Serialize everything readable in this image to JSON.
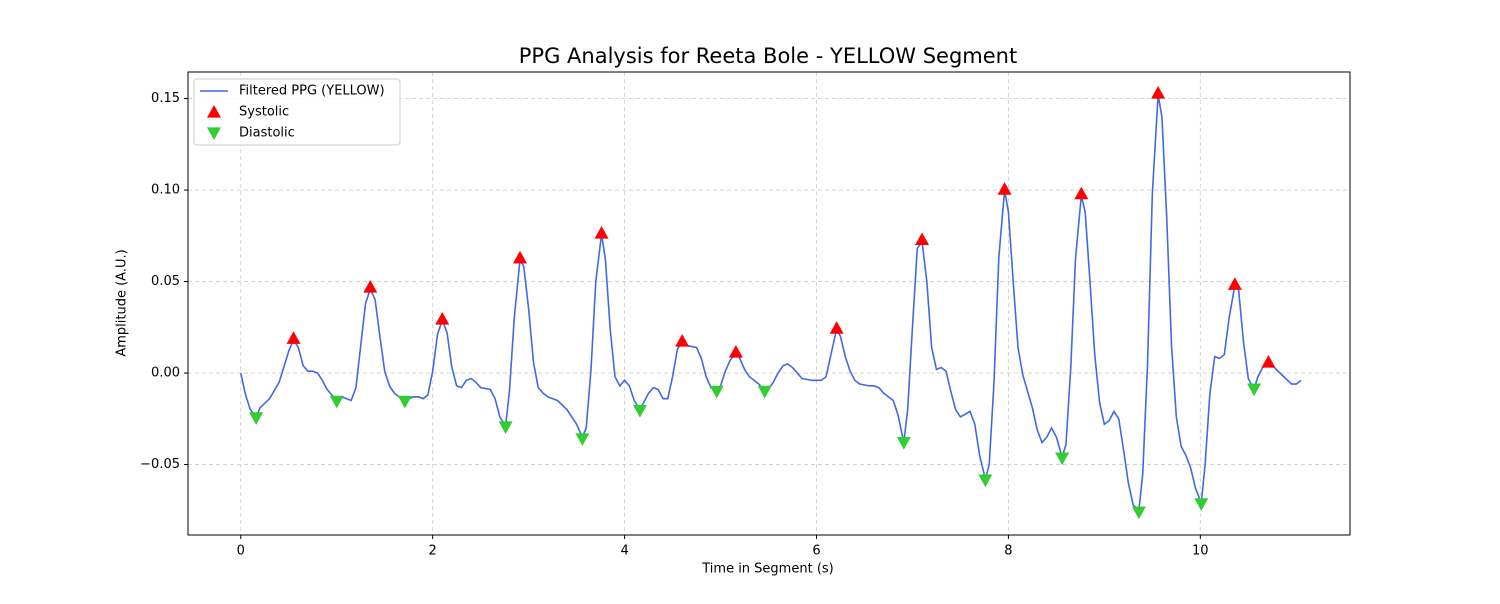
{
  "chart_data": {
    "type": "line",
    "title": "PPG Analysis for Reeta Bole - YELLOW Segment",
    "xlabel": "Time in Segment (s)",
    "ylabel": "Amplitude (A.U.)",
    "xlim": [
      -0.55,
      11.56
    ],
    "ylim": [
      -0.0885,
      0.1645
    ],
    "xticks": [
      0,
      2,
      4,
      6,
      8,
      10
    ],
    "yticks": [
      {
        "value": -0.05,
        "label": "−0.05"
      },
      {
        "value": 0,
        "label": "0.00"
      },
      {
        "value": 0.05,
        "label": "0.05"
      },
      {
        "value": 0.1,
        "label": "0.10"
      },
      {
        "value": 0.15,
        "label": "0.15"
      }
    ],
    "grid": true,
    "legend": "upper left",
    "series": [
      {
        "name": "Filtered PPG (YELLOW)",
        "color": "#4169e1",
        "style": "line",
        "x": [
          0,
          0.05,
          0.1,
          0.16,
          0.2,
          0.3,
          0.4,
          0.5,
          0.55,
          0.6,
          0.65,
          0.7,
          0.75,
          0.8,
          0.85,
          0.9,
          1.0,
          1.05,
          1.1,
          1.15,
          1.2,
          1.25,
          1.3,
          1.35,
          1.4,
          1.45,
          1.5,
          1.55,
          1.6,
          1.7,
          1.8,
          1.85,
          1.9,
          1.95,
          2.0,
          2.05,
          2.1,
          2.15,
          2.2,
          2.25,
          2.3,
          2.35,
          2.4,
          2.45,
          2.5,
          2.6,
          2.65,
          2.7,
          2.76,
          2.8,
          2.85,
          2.91,
          2.95,
          3.0,
          3.05,
          3.1,
          3.15,
          3.2,
          3.3,
          3.4,
          3.5,
          3.56,
          3.6,
          3.65,
          3.7,
          3.76,
          3.8,
          3.85,
          3.9,
          3.95,
          4.0,
          4.05,
          4.1,
          4.16,
          4.2,
          4.25,
          4.3,
          4.35,
          4.4,
          4.45,
          4.5,
          4.55,
          4.6,
          4.65,
          4.75,
          4.8,
          4.85,
          4.9,
          4.96,
          5.0,
          5.05,
          5.1,
          5.16,
          5.2,
          5.25,
          5.3,
          5.4,
          5.46,
          5.5,
          5.55,
          5.6,
          5.65,
          5.7,
          5.75,
          5.8,
          5.85,
          5.95,
          6.05,
          6.1,
          6.15,
          6.21,
          6.25,
          6.3,
          6.35,
          6.4,
          6.45,
          6.55,
          6.6,
          6.65,
          6.7,
          6.8,
          6.85,
          6.91,
          6.95,
          7.0,
          7.05,
          7.1,
          7.15,
          7.2,
          7.25,
          7.3,
          7.35,
          7.4,
          7.45,
          7.5,
          7.6,
          7.65,
          7.7,
          7.76,
          7.8,
          7.85,
          7.9,
          7.96,
          8.0,
          8.05,
          8.1,
          8.15,
          8.2,
          8.25,
          8.3,
          8.35,
          8.4,
          8.45,
          8.5,
          8.56,
          8.6,
          8.65,
          8.7,
          8.76,
          8.8,
          8.85,
          8.9,
          8.95,
          9.0,
          9.05,
          9.1,
          9.15,
          9.2,
          9.25,
          9.3,
          9.36,
          9.4,
          9.45,
          9.5,
          9.56,
          9.6,
          9.65,
          9.7,
          9.75,
          9.8,
          9.85,
          9.9,
          9.95,
          10.01,
          10.05,
          10.1,
          10.15,
          10.2,
          10.25,
          10.3,
          10.36,
          10.4,
          10.45,
          10.5,
          10.56,
          10.6,
          10.65,
          10.71,
          10.75,
          10.85,
          10.95,
          11.0,
          11.05
        ],
        "values": [
          0,
          -0.012,
          -0.02,
          -0.024,
          -0.019,
          -0.014,
          -0.005,
          0.012,
          0.018,
          0.014,
          0.004,
          0.001,
          0.001,
          0,
          -0.004,
          -0.009,
          -0.015,
          -0.013,
          -0.014,
          -0.015,
          -0.008,
          0.015,
          0.038,
          0.046,
          0.04,
          0.02,
          0.001,
          -0.007,
          -0.011,
          -0.015,
          -0.013,
          -0.013,
          -0.014,
          -0.012,
          0.001,
          0.021,
          0.029,
          0.022,
          0.003,
          -0.007,
          -0.008,
          -0.004,
          -0.003,
          -0.005,
          -0.008,
          -0.009,
          -0.014,
          -0.024,
          -0.029,
          -0.01,
          0.03,
          0.062,
          0.058,
          0.035,
          0.006,
          -0.008,
          -0.011,
          -0.013,
          -0.015,
          -0.02,
          -0.028,
          -0.035,
          -0.03,
          0.002,
          0.05,
          0.076,
          0.062,
          0.024,
          -0.002,
          -0.007,
          -0.004,
          -0.007,
          -0.015,
          -0.02,
          -0.016,
          -0.011,
          -0.008,
          -0.009,
          -0.014,
          -0.014,
          -0.002,
          0.013,
          0.017,
          0.015,
          0.014,
          0.008,
          -0.002,
          -0.008,
          -0.01,
          -0.007,
          0.001,
          0.007,
          0.011,
          0.008,
          0.002,
          -0.002,
          -0.006,
          -0.01,
          -0.009,
          -0.005,
          0,
          0.004,
          0.005,
          0.003,
          0,
          -0.003,
          -0.004,
          -0.004,
          -0.002,
          0.01,
          0.024,
          0.02,
          0.009,
          0.001,
          -0.004,
          -0.006,
          -0.007,
          -0.007,
          -0.008,
          -0.011,
          -0.015,
          -0.023,
          -0.038,
          -0.02,
          0.025,
          0.068,
          0.072,
          0.05,
          0.014,
          0.002,
          0.003,
          0.001,
          -0.01,
          -0.02,
          -0.024,
          -0.021,
          -0.028,
          -0.045,
          -0.058,
          -0.05,
          -0.005,
          0.063,
          0.1,
          0.088,
          0.05,
          0.014,
          -0.001,
          -0.01,
          -0.019,
          -0.031,
          -0.038,
          -0.035,
          -0.03,
          -0.035,
          -0.046,
          -0.039,
          0.003,
          0.063,
          0.097,
          0.088,
          0.05,
          0.01,
          -0.016,
          -0.028,
          -0.026,
          -0.021,
          -0.025,
          -0.042,
          -0.06,
          -0.072,
          -0.075,
          -0.055,
          0.005,
          0.098,
          0.152,
          0.14,
          0.085,
          0.015,
          -0.024,
          -0.04,
          -0.045,
          -0.052,
          -0.063,
          -0.071,
          -0.05,
          -0.011,
          0.009,
          0.008,
          0.01,
          0.03,
          0.048,
          0.045,
          0.017,
          -0.003,
          -0.009,
          -0.002,
          0.003,
          0.006,
          0.004,
          -0.001,
          -0.006,
          -0.006,
          -0.004
        ]
      },
      {
        "name": "Systolic",
        "color": "#ff0000",
        "style": "triangle-up",
        "x": [
          0.55,
          1.35,
          2.1,
          2.91,
          3.76,
          4.6,
          5.16,
          6.21,
          7.1,
          7.96,
          8.76,
          9.56,
          10.36,
          10.71
        ],
        "values": [
          0.019,
          0.047,
          0.0295,
          0.063,
          0.0765,
          0.0175,
          0.0115,
          0.0245,
          0.073,
          0.1005,
          0.098,
          0.153,
          0.0485,
          0.006
        ]
      },
      {
        "name": "Diastolic",
        "color": "#32cd32",
        "style": "triangle-down",
        "x": [
          0.16,
          1.0,
          1.71,
          2.76,
          3.56,
          4.16,
          4.96,
          5.46,
          6.91,
          7.76,
          8.56,
          9.36,
          10.01,
          10.56
        ],
        "values": [
          -0.0245,
          -0.0155,
          -0.0155,
          -0.0295,
          -0.036,
          -0.0205,
          -0.01,
          -0.01,
          -0.038,
          -0.0585,
          -0.0465,
          -0.076,
          -0.0715,
          -0.0088
        ]
      }
    ]
  }
}
